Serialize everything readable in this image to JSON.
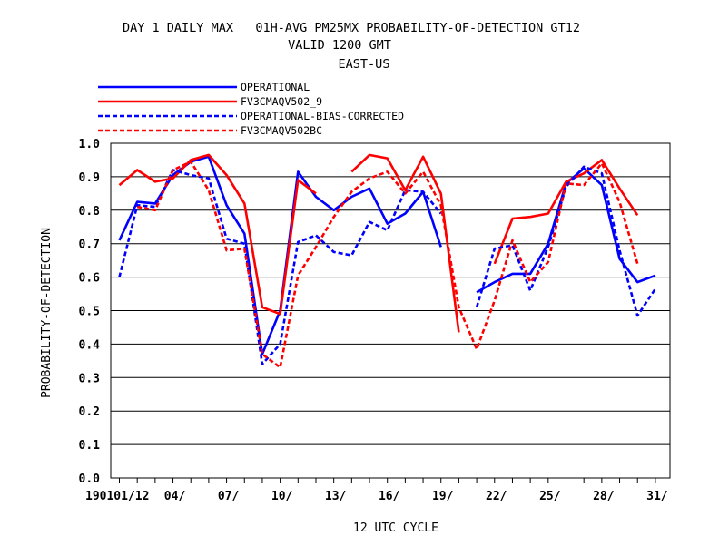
{
  "chart_data": {
    "type": "line",
    "title": "DAY 1 DAILY MAX   01H-AVG PM25MX PROBABILITY-OF-DETECTION GT12",
    "subtitle": "VALID 1200 GMT",
    "region": "EAST-US",
    "xlabel": "12 UTC CYCLE",
    "ylabel": "PROBABILITY-OF-DETECTION",
    "ylim": [
      0.0,
      1.0
    ],
    "xlim": [
      1,
      31
    ],
    "y_ticks": [
      "0.0",
      "0.1",
      "0.2",
      "0.3",
      "0.4",
      "0.5",
      "0.6",
      "0.7",
      "0.8",
      "0.9",
      "1.0"
    ],
    "x_ticks": [
      {
        "x": 1,
        "label": "190101/12"
      },
      {
        "x": 4,
        "label": "04/"
      },
      {
        "x": 7,
        "label": "07/"
      },
      {
        "x": 10,
        "label": "10/"
      },
      {
        "x": 13,
        "label": "13/"
      },
      {
        "x": 16,
        "label": "16/"
      },
      {
        "x": 19,
        "label": "19/"
      },
      {
        "x": 22,
        "label": "22/"
      },
      {
        "x": 25,
        "label": "25/"
      },
      {
        "x": 28,
        "label": "28/"
      },
      {
        "x": 31,
        "label": "31/"
      }
    ],
    "grid": "horizontal",
    "legend_position": "top-left",
    "x": [
      1,
      2,
      3,
      4,
      5,
      6,
      7,
      8,
      9,
      10,
      11,
      12,
      13,
      14,
      15,
      16,
      17,
      18,
      19,
      20,
      21,
      22,
      23,
      24,
      25,
      26,
      27,
      28,
      29,
      30,
      31
    ],
    "series": [
      {
        "name": "OPERATIONAL",
        "color": "#0000ff",
        "dash": "solid",
        "values": [
          0.71,
          0.825,
          0.82,
          0.905,
          0.945,
          0.96,
          0.815,
          0.73,
          0.37,
          0.5,
          0.915,
          0.84,
          0.8,
          0.84,
          0.865,
          0.76,
          0.79,
          0.855,
          0.69,
          null,
          0.555,
          0.585,
          0.61,
          0.61,
          0.7,
          0.88,
          0.925,
          0.875,
          0.655,
          0.585,
          0.605
        ]
      },
      {
        "name": "FV3CMAQV502_9",
        "color": "#ff0000",
        "dash": "solid",
        "values": [
          0.875,
          0.92,
          0.885,
          0.895,
          0.95,
          0.965,
          0.905,
          0.82,
          0.51,
          0.49,
          0.89,
          0.85,
          null,
          0.915,
          0.965,
          0.955,
          0.86,
          0.96,
          0.85,
          0.435,
          null,
          0.64,
          0.775,
          0.78,
          0.79,
          0.885,
          0.91,
          0.95,
          0.865,
          0.785,
          null
        ]
      },
      {
        "name": "OPERATIONAL-BIAS-CORRECTED",
        "color": "#0000ff",
        "dash": "dashed",
        "values": [
          0.6,
          0.815,
          0.81,
          0.92,
          0.905,
          0.895,
          0.715,
          0.7,
          0.34,
          0.4,
          0.705,
          0.725,
          0.675,
          0.665,
          0.765,
          0.74,
          0.86,
          0.855,
          0.79,
          null,
          0.51,
          0.685,
          0.695,
          0.56,
          0.69,
          0.87,
          0.93,
          0.91,
          0.68,
          0.485,
          0.565
        ]
      },
      {
        "name": "FV3CMAQV502BC",
        "color": "#ff0000",
        "dash": "dashed",
        "values": [
          null,
          0.81,
          0.8,
          0.92,
          0.945,
          0.86,
          0.68,
          0.685,
          0.37,
          0.33,
          0.605,
          0.69,
          0.78,
          0.855,
          0.895,
          0.915,
          0.85,
          0.915,
          0.815,
          0.51,
          0.385,
          0.53,
          0.71,
          0.585,
          0.645,
          0.88,
          0.875,
          0.94,
          0.825,
          0.64,
          null
        ]
      }
    ]
  }
}
